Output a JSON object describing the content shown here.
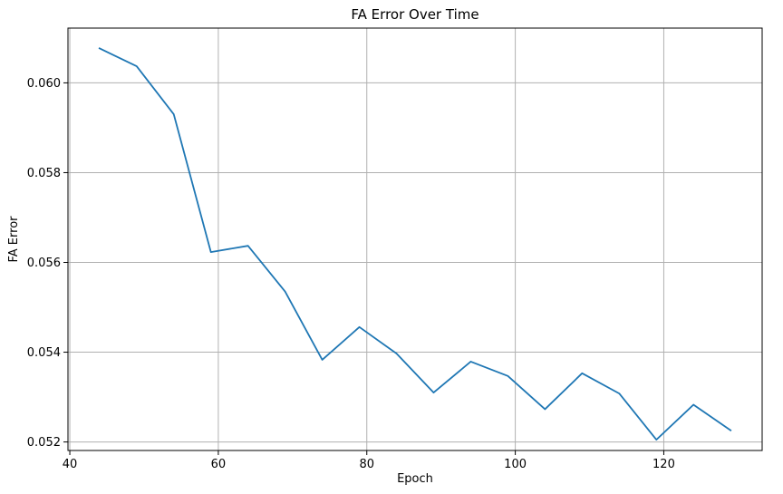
{
  "chart_data": {
    "type": "line",
    "title": "FA Error Over Time",
    "xlabel": "Epoch",
    "ylabel": "FA Error",
    "xlim": [
      39.75,
      133.25
    ],
    "ylim": [
      0.05181,
      0.06122
    ],
    "grid": true,
    "x_ticks": [
      40,
      60,
      80,
      100,
      120
    ],
    "x_tick_labels": [
      "40",
      "60",
      "80",
      "100",
      "120"
    ],
    "y_ticks": [
      0.052,
      0.054,
      0.056,
      0.058,
      0.06
    ],
    "y_tick_labels": [
      "0.052",
      "0.054",
      "0.056",
      "0.058",
      "0.060"
    ],
    "series": [
      {
        "color": "#1f77b4",
        "x": [
          44,
          49,
          54,
          59,
          64,
          69,
          74,
          79,
          84,
          89,
          94,
          99,
          104,
          109,
          114,
          119,
          124,
          129
        ],
        "y": [
          0.06077,
          0.06037,
          0.0593,
          0.05623,
          0.05637,
          0.05535,
          0.05383,
          0.05456,
          0.05397,
          0.0531,
          0.05379,
          0.05347,
          0.05273,
          0.05353,
          0.05308,
          0.05205,
          0.05283,
          0.05226
        ]
      }
    ]
  }
}
